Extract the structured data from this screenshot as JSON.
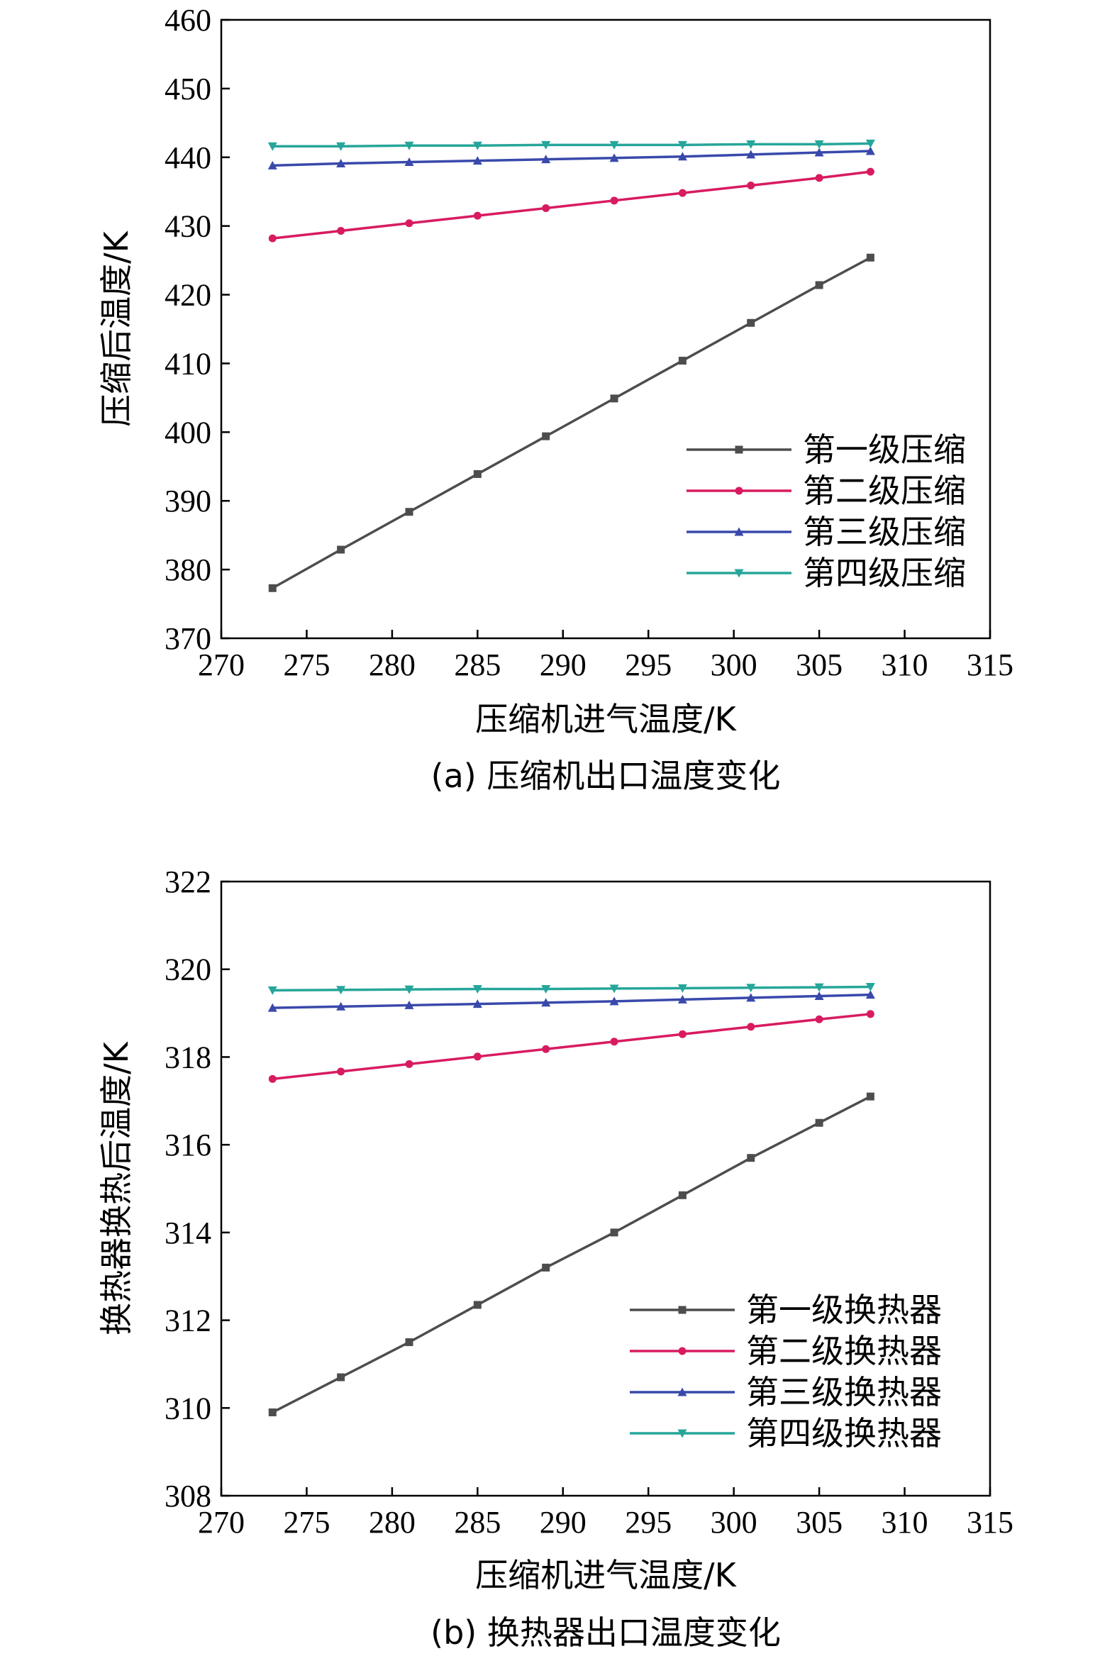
{
  "chart_data": [
    {
      "type": "line",
      "caption": "(a) 压缩机出口温度变化",
      "xlabel": "压缩机进气温度/K",
      "ylabel": "压缩后温度/K",
      "xlim": [
        270,
        315
      ],
      "ylim": [
        370,
        460
      ],
      "xticks": [
        270,
        275,
        280,
        285,
        290,
        295,
        300,
        305,
        310,
        315
      ],
      "yticks": [
        370,
        380,
        390,
        400,
        410,
        420,
        430,
        440,
        450,
        460
      ],
      "grid": false,
      "legend_position": "lower-right",
      "x": [
        273,
        277,
        281,
        285,
        289,
        293,
        297,
        301,
        305,
        308
      ],
      "series": [
        {
          "name": "第一级压缩",
          "color": "#4d4d4d",
          "marker": "square",
          "values": [
            377.3,
            382.9,
            388.4,
            393.9,
            399.4,
            404.9,
            410.4,
            415.9,
            421.4,
            425.4
          ]
        },
        {
          "name": "第二级压缩",
          "color": "#d81b60",
          "marker": "circle",
          "values": [
            428.2,
            429.3,
            430.4,
            431.5,
            432.6,
            433.7,
            434.8,
            435.9,
            437.0,
            437.9
          ]
        },
        {
          "name": "第三级压缩",
          "color": "#3949ab",
          "marker": "triangle-up",
          "values": [
            438.8,
            439.1,
            439.3,
            439.5,
            439.7,
            439.9,
            440.1,
            440.4,
            440.7,
            440.9
          ]
        },
        {
          "name": "第四级压缩",
          "color": "#26a69a",
          "marker": "triangle-down",
          "values": [
            441.6,
            441.6,
            441.7,
            441.7,
            441.8,
            441.8,
            441.8,
            441.9,
            441.9,
            442.0
          ]
        }
      ]
    },
    {
      "type": "line",
      "caption": "(b) 换热器出口温度变化",
      "xlabel": "压缩机进气温度/K",
      "ylabel": "换热器换热后温度/K",
      "xlim": [
        270,
        315
      ],
      "ylim": [
        308,
        322
      ],
      "xticks": [
        270,
        275,
        280,
        285,
        290,
        295,
        300,
        305,
        310,
        315
      ],
      "yticks": [
        308,
        310,
        312,
        314,
        316,
        318,
        320,
        322
      ],
      "grid": false,
      "legend_position": "lower-right",
      "x": [
        273,
        277,
        281,
        285,
        289,
        293,
        297,
        301,
        305,
        308
      ],
      "series": [
        {
          "name": "第一级换热器",
          "color": "#4d4d4d",
          "marker": "square",
          "values": [
            309.9,
            310.7,
            311.5,
            312.35,
            313.2,
            314.0,
            314.85,
            315.7,
            316.5,
            317.1
          ]
        },
        {
          "name": "第二级换热器",
          "color": "#d81b60",
          "marker": "circle",
          "values": [
            317.5,
            317.67,
            317.84,
            318.01,
            318.18,
            318.35,
            318.52,
            318.69,
            318.86,
            318.98
          ]
        },
        {
          "name": "第三级换热器",
          "color": "#3949ab",
          "marker": "triangle-up",
          "values": [
            319.12,
            319.15,
            319.18,
            319.21,
            319.24,
            319.27,
            319.31,
            319.35,
            319.39,
            319.42
          ]
        },
        {
          "name": "第四级换热器",
          "color": "#26a69a",
          "marker": "triangle-down",
          "values": [
            319.52,
            319.53,
            319.54,
            319.55,
            319.55,
            319.56,
            319.57,
            319.58,
            319.59,
            319.6
          ]
        }
      ]
    }
  ]
}
